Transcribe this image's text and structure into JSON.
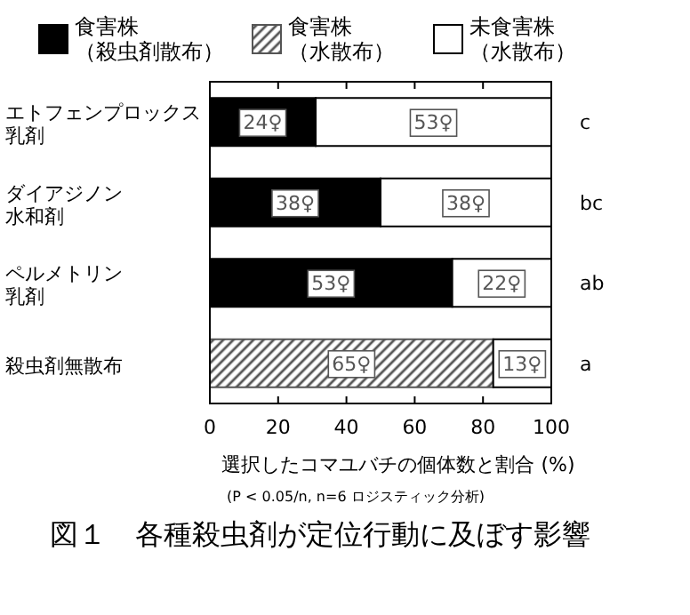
{
  "chart_data": {
    "type": "bar",
    "orientation": "horizontal",
    "stacked": true,
    "categories": [
      "エトフェンプロックス乳剤",
      "ダイアジノン水和剤",
      "ペルメトリン乳剤",
      "殺虫剤無散布"
    ],
    "series": [
      {
        "name": "食害株（殺虫剤散布）",
        "color": "#000000",
        "values": [
          31,
          50,
          71,
          null
        ]
      },
      {
        "name": "食害株（水散布）",
        "color": "#555555",
        "values": [
          null,
          null,
          null,
          83
        ]
      },
      {
        "name": "未食害株（水散布）",
        "color": "#ffffff",
        "values": [
          69,
          50,
          29,
          17
        ]
      }
    ],
    "xlim": [
      0,
      100
    ],
    "xticks": [
      0,
      20,
      40,
      60,
      80,
      100
    ],
    "xlabel": "選択したコマユバチの個体数と割合 (%)",
    "legend": "top",
    "annotations": [
      {
        "text": "24♀",
        "x": 15.5,
        "y": "エトフェンプロックス乳剤"
      },
      {
        "text": "53♀",
        "x": 65.5,
        "y": "エトフェンプロックス乳剤"
      },
      {
        "text": "38♀",
        "x": 25,
        "y": "ダイアジノン水和剤"
      },
      {
        "text": "38♀",
        "x": 75,
        "y": "ダイアジノン水和剤"
      },
      {
        "text": "53♀",
        "x": 35.5,
        "y": "ペルメトリン乳剤"
      },
      {
        "text": "22♀",
        "x": 85.5,
        "y": "ペルメトリン乳剤"
      },
      {
        "text": "65♀",
        "x": 41.5,
        "y": "殺虫剤無散布"
      },
      {
        "text": "13♀",
        "x": 91.5,
        "y": "殺虫剤無散布"
      },
      "c",
      "bc",
      "ab",
      "a",
      "(P < 0.05/n, n=6  ロジスティック分析)",
      "図１　各種殺虫剤が定位行動に及ぼす影響"
    ]
  }
}
